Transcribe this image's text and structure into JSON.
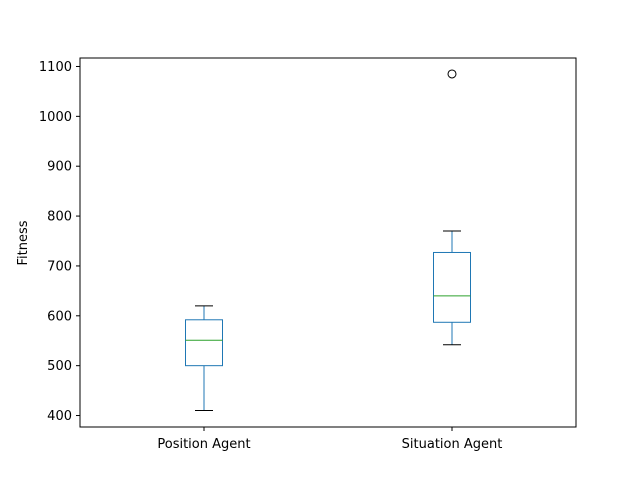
{
  "chart_data": {
    "type": "box",
    "title": "",
    "xlabel": "",
    "ylabel": "Fitness",
    "ylim": [
      377,
      1117
    ],
    "yticks": [
      400,
      500,
      600,
      700,
      800,
      900,
      1000,
      1100
    ],
    "grid": false,
    "legend": "none",
    "colors": {
      "box": "#1f77b4",
      "median": "#2ca02c",
      "whisker_cap": "#000000",
      "flier": "#000000"
    },
    "categories": [
      "Position Agent",
      "Situation Agent"
    ],
    "boxes": [
      {
        "name": "Position Agent",
        "whisker_low": 410,
        "q1": 500,
        "median": 551,
        "q3": 592,
        "whisker_high": 620,
        "fliers": []
      },
      {
        "name": "Situation Agent",
        "whisker_low": 542,
        "q1": 587,
        "median": 640,
        "q3": 727,
        "whisker_high": 770,
        "fliers": [
          1085
        ]
      }
    ]
  }
}
